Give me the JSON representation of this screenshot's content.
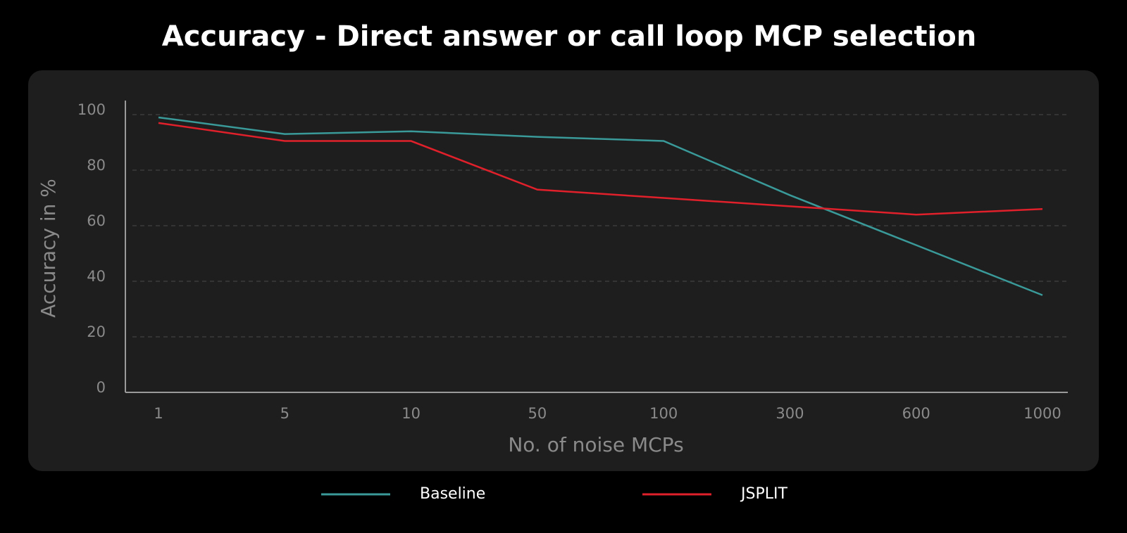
{
  "chart_data": {
    "type": "line",
    "title": "Accuracy - Direct answer or call loop MCP selection",
    "x_label": "No. of noise MCPs",
    "y_label": "Accuracy in %",
    "categories": [
      "1",
      "5",
      "10",
      "50",
      "100",
      "300",
      "600",
      "1000"
    ],
    "series": [
      {
        "name": "Baseline",
        "color": "#3a9a9a",
        "values": [
          99,
          93,
          94,
          92,
          90.5,
          71,
          53,
          35
        ]
      },
      {
        "name": "JSPLIT",
        "color": "#e0202a",
        "values": [
          97,
          90.5,
          90.5,
          73,
          70,
          67,
          64,
          66
        ]
      }
    ],
    "ylim": [
      0,
      100
    ],
    "yticks": [
      0,
      20,
      40,
      60,
      80,
      100
    ],
    "grid": true
  }
}
